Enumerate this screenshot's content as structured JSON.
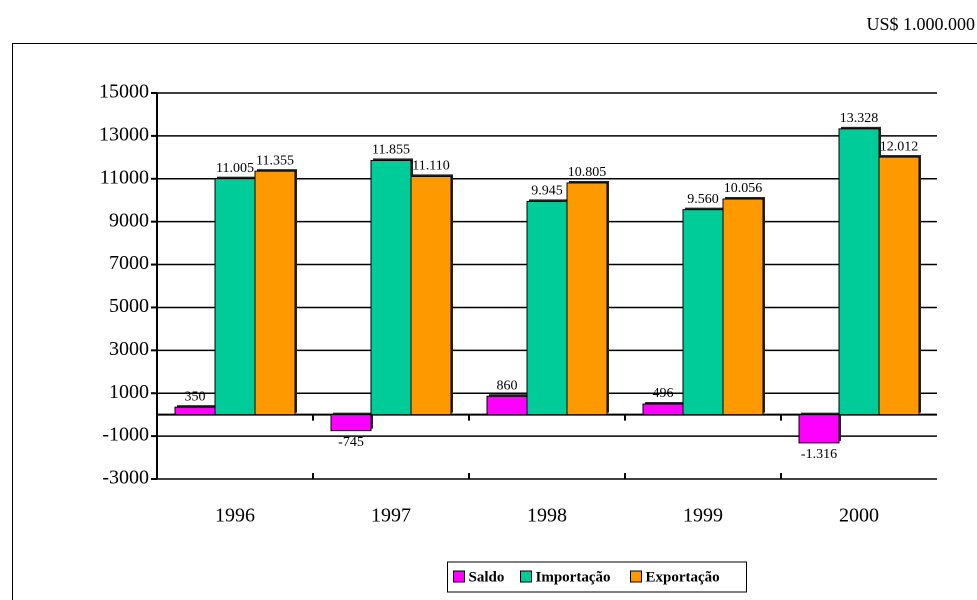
{
  "chart_data": {
    "type": "bar",
    "unit_label": "US$ 1.000.000",
    "categories": [
      "1996",
      "1997",
      "1998",
      "1999",
      "2000"
    ],
    "series": [
      {
        "name": "Saldo",
        "color": "#ff00ff",
        "values": [
          350,
          -745,
          860,
          496,
          -1316
        ],
        "value_labels": [
          "350",
          "-745",
          "860",
          "496",
          "-1.316"
        ]
      },
      {
        "name": "Importação",
        "color": "#00cc99",
        "values": [
          11005,
          11855,
          9945,
          9560,
          13328
        ],
        "value_labels": [
          "11.005",
          "11.855",
          "9.945",
          "9.560",
          "13.328"
        ]
      },
      {
        "name": "Exportação",
        "color": "#ff9900",
        "values": [
          11355,
          11110,
          10805,
          10056,
          12012
        ],
        "value_labels": [
          "11.355",
          "11.110",
          "10.805",
          "10.056",
          "12.012"
        ]
      }
    ],
    "ylim": [
      -3000,
      15000
    ],
    "yticks": [
      -3000,
      -1000,
      1000,
      3000,
      5000,
      7000,
      9000,
      11000,
      13000,
      15000
    ],
    "grid": true,
    "legend": "bottom"
  }
}
